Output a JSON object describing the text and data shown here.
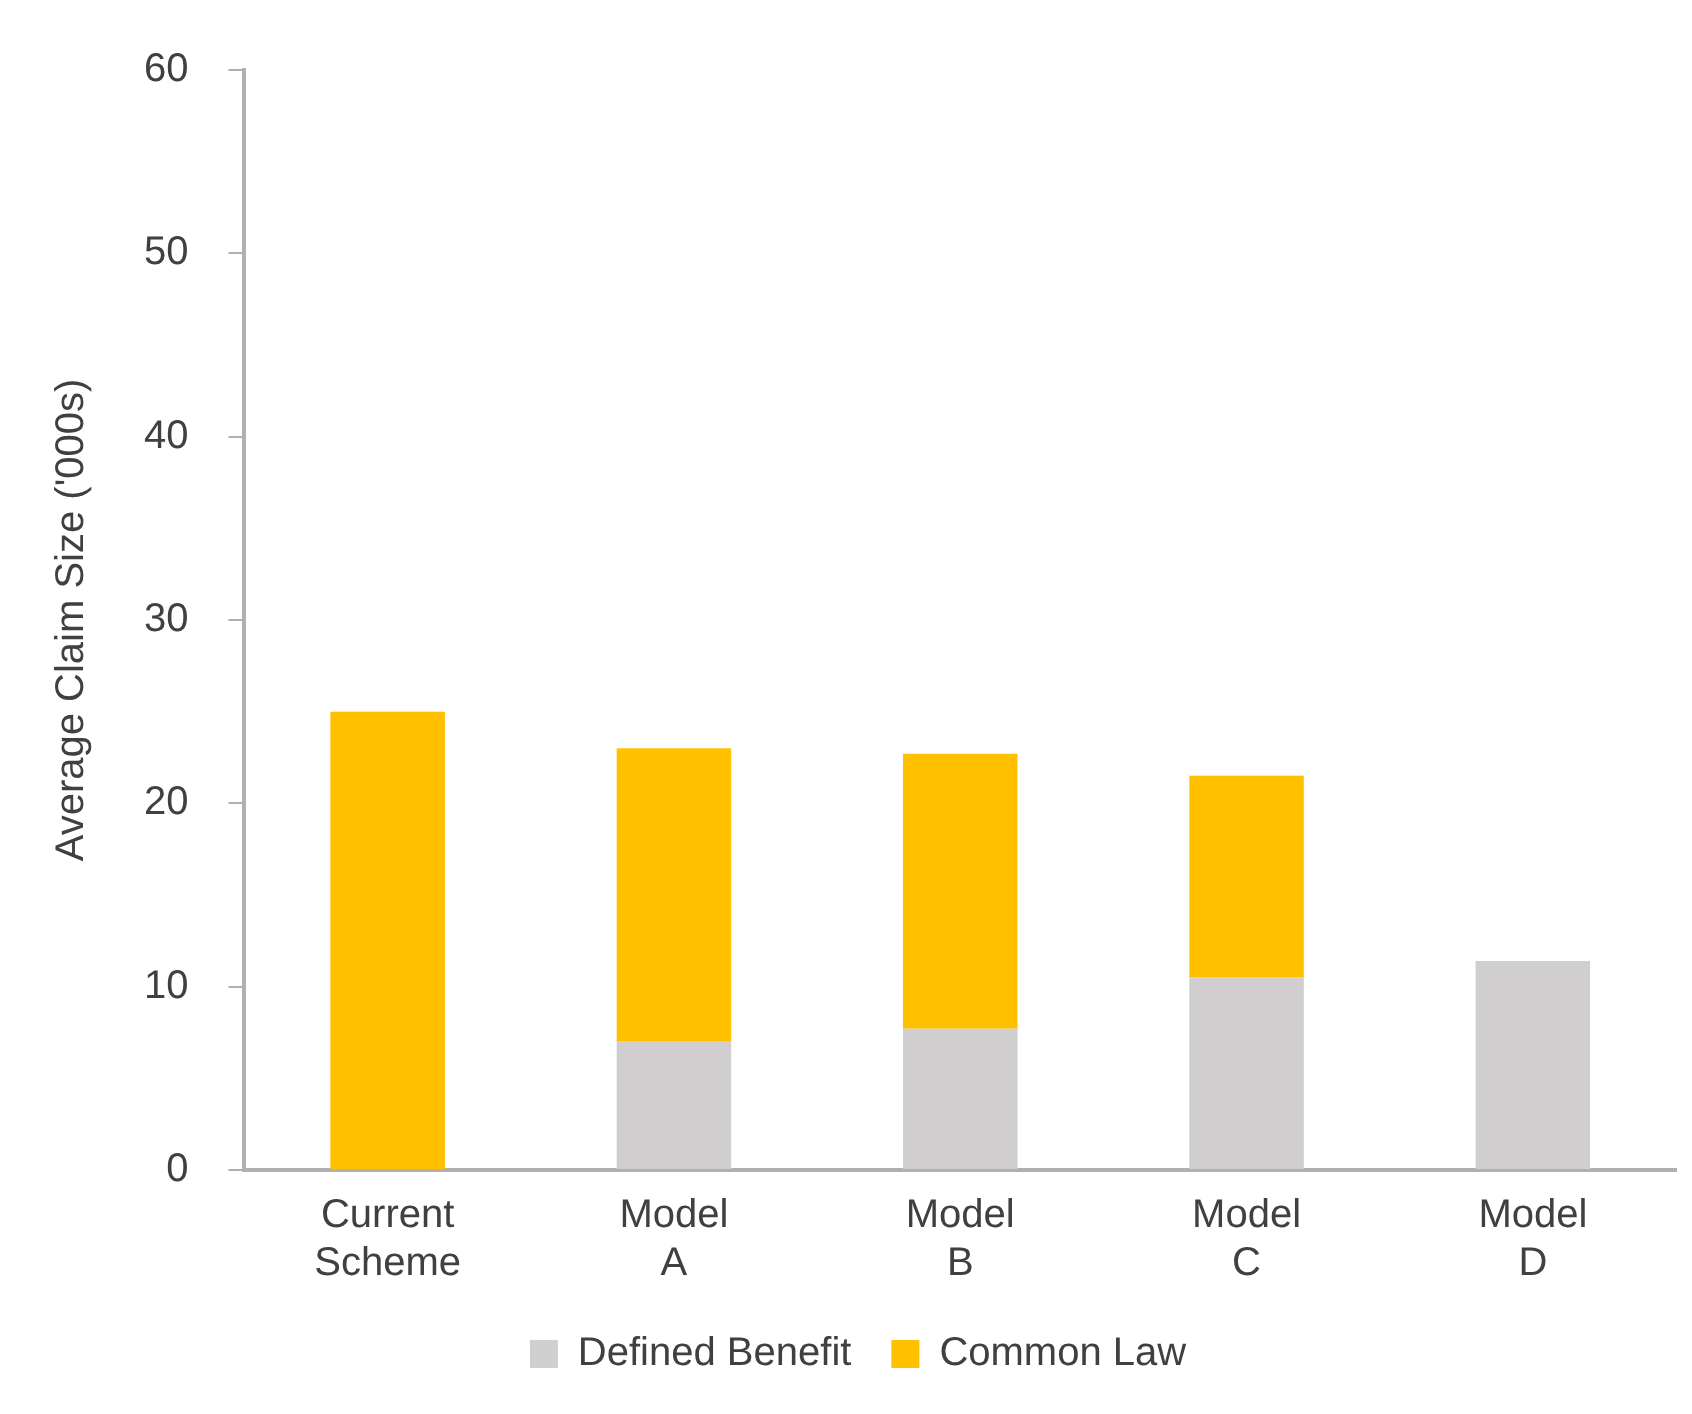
{
  "chart_data": {
    "type": "bar",
    "stacked": true,
    "ylabel": "Average Claim Size ('000s)",
    "categories": [
      "Current Scheme",
      "Model A",
      "Model B",
      "Model C",
      "Model D"
    ],
    "series": [
      {
        "name": "Defined Benefit",
        "color": "#d0cece",
        "values": [
          0,
          7.0,
          7.7,
          10.5,
          11.4
        ]
      },
      {
        "name": "Common Law",
        "color": "#ffc000",
        "values": [
          25.0,
          16.0,
          15.0,
          11.0,
          0
        ]
      }
    ],
    "ylim": [
      0,
      60
    ],
    "yticks": [
      0,
      10,
      20,
      30,
      40,
      50,
      60
    ],
    "grid": false,
    "legend": "bottom"
  }
}
